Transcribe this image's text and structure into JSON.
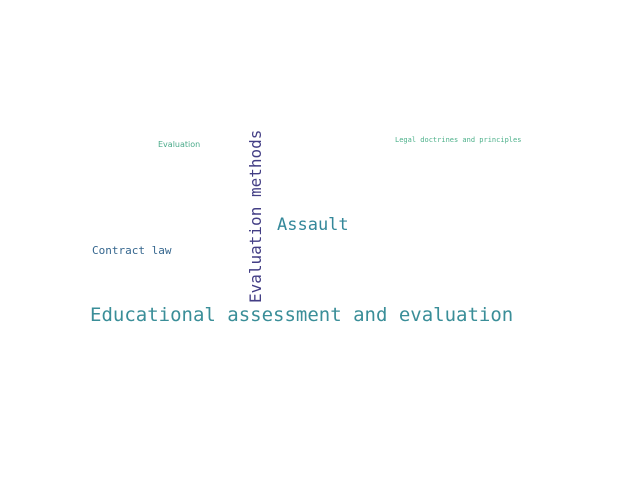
{
  "words": {
    "educational_assessment": {
      "text": "Educational assessment and evaluation",
      "color": "#3a8e98"
    },
    "assault": {
      "text": "Assault",
      "color": "#34889a"
    },
    "evaluation_methods": {
      "text": "Evaluation methods",
      "color": "#433e85"
    },
    "contract_law": {
      "text": "Contract law",
      "color": "#35668e"
    },
    "evaluation": {
      "text": "Evaluation",
      "color": "#4aaa8a"
    },
    "legal_doctrines": {
      "text": "Legal doctrines and principles",
      "color": "#4cb08a"
    }
  }
}
